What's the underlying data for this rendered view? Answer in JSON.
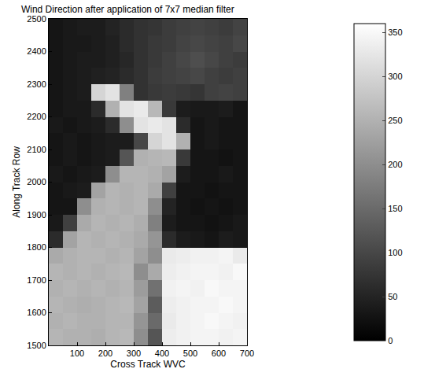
{
  "chart_data": {
    "type": "heatmap",
    "title": "Wind Direction after application of 7x7 median filter",
    "x_label": "Cross Track WVC",
    "y_label": "Along Track Row",
    "xlim": [
      0,
      700
    ],
    "xticks": [
      100,
      200,
      300,
      400,
      500,
      600,
      700
    ],
    "ylim": [
      1500,
      2500
    ],
    "yticks": [
      1500,
      1600,
      1700,
      1800,
      1900,
      2000,
      2100,
      2200,
      2300,
      2400,
      2500
    ],
    "x": [
      25,
      75,
      125,
      175,
      225,
      275,
      325,
      375,
      425,
      475,
      525,
      575,
      625,
      675
    ],
    "y": [
      1525,
      1575,
      1625,
      1675,
      1725,
      1775,
      1825,
      1875,
      1925,
      1975,
      2025,
      2075,
      2125,
      2175,
      2225,
      2275,
      2325,
      2375,
      2425,
      2475
    ],
    "z": [
      [
        255,
        250,
        250,
        245,
        255,
        260,
        200,
        120,
        335,
        340,
        345,
        345,
        340,
        345
      ],
      [
        250,
        255,
        250,
        250,
        255,
        255,
        210,
        150,
        330,
        340,
        345,
        350,
        345,
        340
      ],
      [
        255,
        250,
        245,
        250,
        255,
        260,
        230,
        130,
        335,
        340,
        345,
        345,
        350,
        345
      ],
      [
        250,
        255,
        250,
        255,
        250,
        255,
        220,
        160,
        340,
        345,
        340,
        350,
        345,
        345
      ],
      [
        255,
        250,
        255,
        250,
        255,
        260,
        200,
        240,
        335,
        340,
        345,
        345,
        340,
        350
      ],
      [
        240,
        250,
        255,
        255,
        250,
        255,
        230,
        200,
        330,
        335,
        340,
        340,
        345,
        330
      ],
      [
        60,
        230,
        255,
        250,
        255,
        250,
        240,
        210,
        60,
        40,
        35,
        30,
        40,
        35
      ],
      [
        35,
        90,
        240,
        255,
        250,
        255,
        245,
        180,
        40,
        30,
        30,
        25,
        30,
        35
      ],
      [
        30,
        30,
        200,
        250,
        255,
        250,
        255,
        200,
        50,
        30,
        25,
        30,
        25,
        30
      ],
      [
        30,
        35,
        40,
        230,
        255,
        250,
        255,
        240,
        90,
        30,
        30,
        25,
        30,
        30
      ],
      [
        35,
        30,
        35,
        40,
        200,
        255,
        255,
        250,
        230,
        40,
        30,
        30,
        35,
        30
      ],
      [
        30,
        35,
        30,
        35,
        40,
        120,
        250,
        255,
        260,
        80,
        30,
        30,
        25,
        30
      ],
      [
        30,
        35,
        30,
        35,
        40,
        40,
        100,
        300,
        320,
        250,
        30,
        35,
        30,
        30
      ],
      [
        35,
        30,
        35,
        40,
        60,
        200,
        320,
        330,
        320,
        60,
        30,
        35,
        30,
        30
      ],
      [
        30,
        35,
        35,
        60,
        250,
        320,
        330,
        260,
        80,
        40,
        35,
        35,
        40,
        30
      ],
      [
        30,
        35,
        40,
        300,
        320,
        180,
        70,
        80,
        85,
        80,
        75,
        90,
        95,
        90
      ],
      [
        30,
        35,
        40,
        45,
        50,
        60,
        70,
        85,
        90,
        95,
        100,
        90,
        85,
        90
      ],
      [
        30,
        35,
        40,
        40,
        45,
        55,
        70,
        80,
        90,
        100,
        110,
        100,
        90,
        85
      ],
      [
        30,
        35,
        35,
        40,
        45,
        60,
        70,
        80,
        85,
        95,
        100,
        95,
        90,
        100
      ],
      [
        30,
        35,
        40,
        40,
        50,
        60,
        70,
        75,
        85,
        90,
        95,
        90,
        85,
        95
      ]
    ],
    "colorbar_range": [
      0,
      360
    ],
    "colorbar_ticks": [
      0,
      50,
      100,
      150,
      200,
      250,
      300,
      350
    ]
  }
}
